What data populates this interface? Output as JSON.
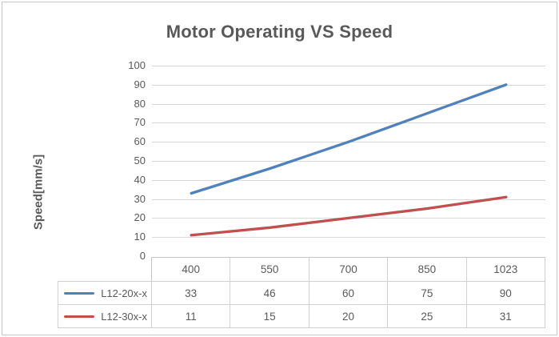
{
  "chart_data": {
    "type": "line",
    "title": "Motor Operating VS Speed",
    "ylabel": "Speed[mm/s]",
    "xlabel": "",
    "categories": [
      "400",
      "550",
      "700",
      "850",
      "1023"
    ],
    "series": [
      {
        "name": "L12-20x-x",
        "color": "#4f81bd",
        "values": [
          33,
          46,
          60,
          75,
          90
        ]
      },
      {
        "name": "L12-30x-x",
        "color": "#c0504d",
        "values": [
          11,
          15,
          20,
          25,
          31
        ]
      }
    ],
    "ylim": [
      0,
      100
    ],
    "yticks": [
      0,
      10,
      20,
      30,
      40,
      50,
      60,
      70,
      80,
      90,
      100
    ],
    "grid": true,
    "legend_position": "data-table-left",
    "data_table": true
  },
  "colors": {
    "text": "#595959",
    "gridline": "#d9d9d9",
    "table_border": "#d0d0d0",
    "axis_line": "#c6c6c6",
    "frame_border": "#c9c9c9",
    "background": "#ffffff"
  }
}
